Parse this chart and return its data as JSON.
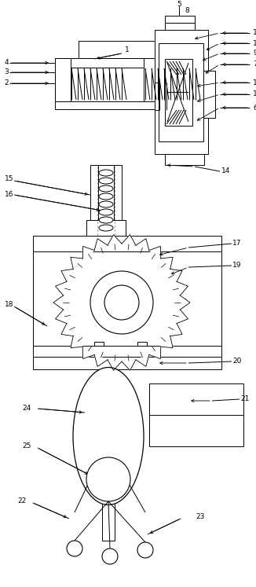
{
  "bg_color": "#ffffff",
  "line_color": "#000000",
  "fig_width": 3.26,
  "fig_height": 7.47,
  "dpi": 100
}
